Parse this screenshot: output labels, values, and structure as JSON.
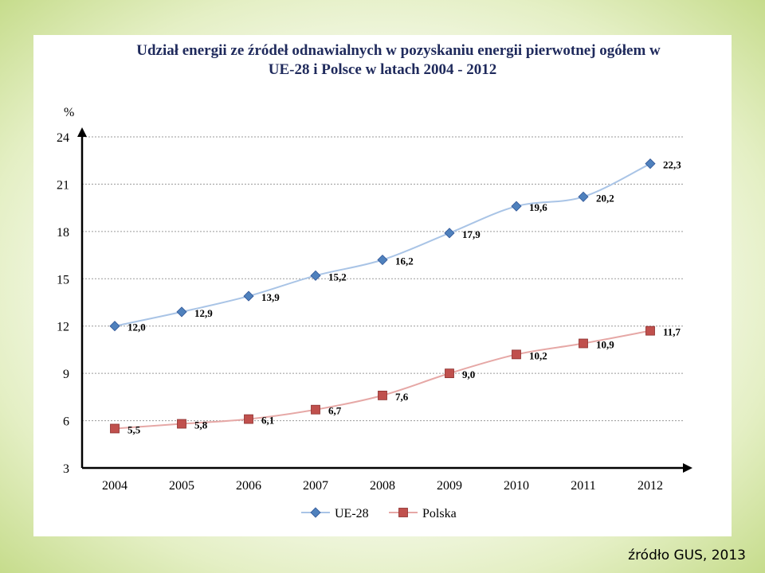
{
  "source_note": "źródło GUS, 2013",
  "chart_data": {
    "type": "line",
    "title": "Udział energii ze źródeł odnawialnych w pozyskaniu energii pierwotnej ogółem w UE-28 i Polsce w latach 2004 - 2012",
    "title_lines": [
      "Udział energii ze źródeł odnawialnych w pozyskaniu energii pierwotnej ogółem w",
      "UE-28 i Polsce w latach 2004 - 2012"
    ],
    "ylabel": "%",
    "xlabel": "",
    "ylim": [
      3,
      24
    ],
    "yticks": [
      24,
      21,
      18,
      15,
      12,
      9,
      6,
      3
    ],
    "categories": [
      "2004",
      "2005",
      "2006",
      "2007",
      "2008",
      "2009",
      "2010",
      "2011",
      "2012"
    ],
    "grid": true,
    "legend_position": "bottom",
    "series": [
      {
        "name": "UE-28",
        "values": [
          12.0,
          12.9,
          13.9,
          15.2,
          16.2,
          17.9,
          19.6,
          20.2,
          22.3
        ],
        "labels": [
          "12,0",
          "12,9",
          "13,9",
          "15,2",
          "16,2",
          "17,9",
          "19,6",
          "20,2",
          "22,3"
        ],
        "marker": "diamond",
        "color": "#4f81bd",
        "line_color": "#a9c4e6"
      },
      {
        "name": "Polska",
        "values": [
          5.5,
          5.8,
          6.1,
          6.7,
          7.6,
          9.0,
          10.2,
          10.9,
          11.7
        ],
        "labels": [
          "5,5",
          "5,8",
          "6,1",
          "6,7",
          "7,6",
          "9,0",
          "10,2",
          "10,9",
          "11,7"
        ],
        "marker": "square",
        "color": "#c0504d",
        "line_color": "#e6a8a6"
      }
    ]
  }
}
